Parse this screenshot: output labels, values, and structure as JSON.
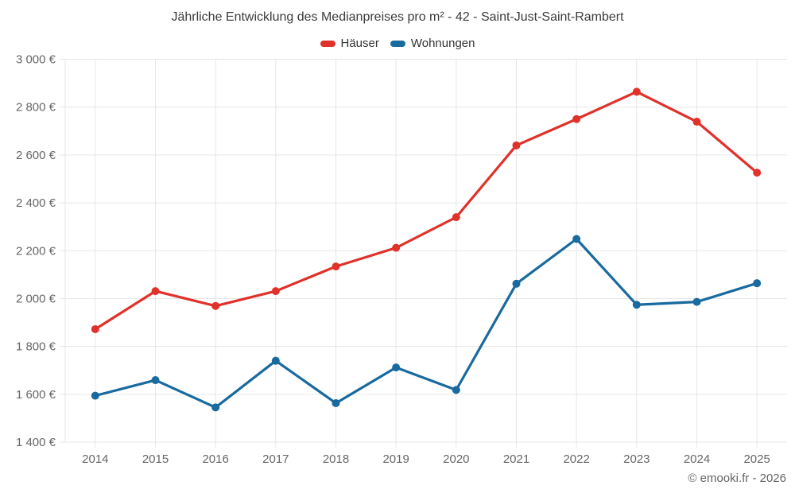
{
  "page": {
    "footer": "© emooki.fr - 2026"
  },
  "colors": {
    "grid": "#e7e7e7",
    "axis_label": "#666666",
    "title_text": "#3c3c3c",
    "hauser_red": "#e0312a",
    "wohnungen_blue": "#186a9f"
  },
  "chart_data": {
    "type": "line",
    "title": "Jährliche Entwicklung des Medianpreises pro m² - 42 - Saint-Just-Saint-Rambert",
    "xlabel": "",
    "ylabel": "",
    "categories": [
      "2014",
      "2015",
      "2016",
      "2017",
      "2018",
      "2019",
      "2020",
      "2021",
      "2022",
      "2023",
      "2024",
      "2025"
    ],
    "series": [
      {
        "name": "Häuser",
        "color": "#e0312a",
        "values": [
          1872,
          2031,
          1969,
          2031,
          2134,
          2212,
          2340,
          2640,
          2750,
          2864,
          2739,
          2526
        ]
      },
      {
        "name": "Wohnungen",
        "color": "#186a9f",
        "values": [
          1594,
          1659,
          1545,
          1740,
          1563,
          1712,
          1618,
          2062,
          2249,
          1974,
          1986,
          2064
        ]
      }
    ],
    "ylim": [
      1400,
      3000
    ],
    "ytick_step": 200,
    "ytick_labels": [
      "1 400 €",
      "1 600 €",
      "1 800 €",
      "2 000 €",
      "2 200 €",
      "2 400 €",
      "2 600 €",
      "2 800 €",
      "3 000 €"
    ],
    "grid": true,
    "legend_position": "top",
    "marker": "circle",
    "unit": "€"
  }
}
